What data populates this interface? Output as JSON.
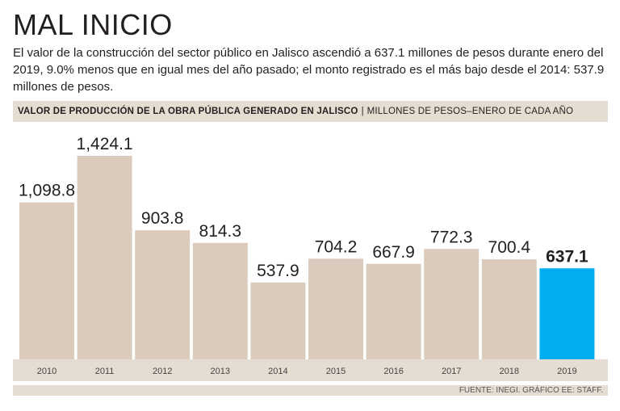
{
  "title": "MAL INICIO",
  "subtitle": "El valor de la construcción del sector público en Jalisco ascendió a 637.1 millones de pesos durante enero del 2019, 9.0% menos que en igual mes del año pasado; el monto registrado es el más bajo desde el 2014: 537.9 millones de pesos.",
  "header": {
    "title": "VALOR DE PRODUCCIÓN DE LA OBRA PÚBLICA GENERADO EN JALISCO",
    "separator": "|",
    "subtitle": "MILLONES DE PESOS–ENERO DE CADA AÑO"
  },
  "source": "FUENTE: INEGI. GRÁFICO EE: STAFF.",
  "colors": {
    "bar": "#dbcbbc",
    "highlight": "#00aeef",
    "band": "#e6ddd2"
  },
  "chart_data": {
    "type": "bar",
    "title": "VALOR DE PRODUCCIÓN DE LA OBRA PÚBLICA GENERADO EN JALISCO",
    "ylabel": "MILLONES DE PESOS–ENERO DE CADA AÑO",
    "xlabel": "",
    "categories": [
      "2010",
      "2011",
      "2012",
      "2013",
      "2014",
      "2015",
      "2016",
      "2017",
      "2018",
      "2019"
    ],
    "values": [
      1098.8,
      1424.1,
      903.8,
      814.3,
      537.9,
      704.2,
      667.9,
      772.3,
      700.4,
      637.1
    ],
    "labels": [
      "1,098.8",
      "1,424.1",
      "903.8",
      "814.3",
      "537.9",
      "704.2",
      "667.9",
      "772.3",
      "700.4",
      "637.1"
    ],
    "highlight_index": 9,
    "ylim": [
      0,
      1424.1
    ],
    "grid": false
  }
}
